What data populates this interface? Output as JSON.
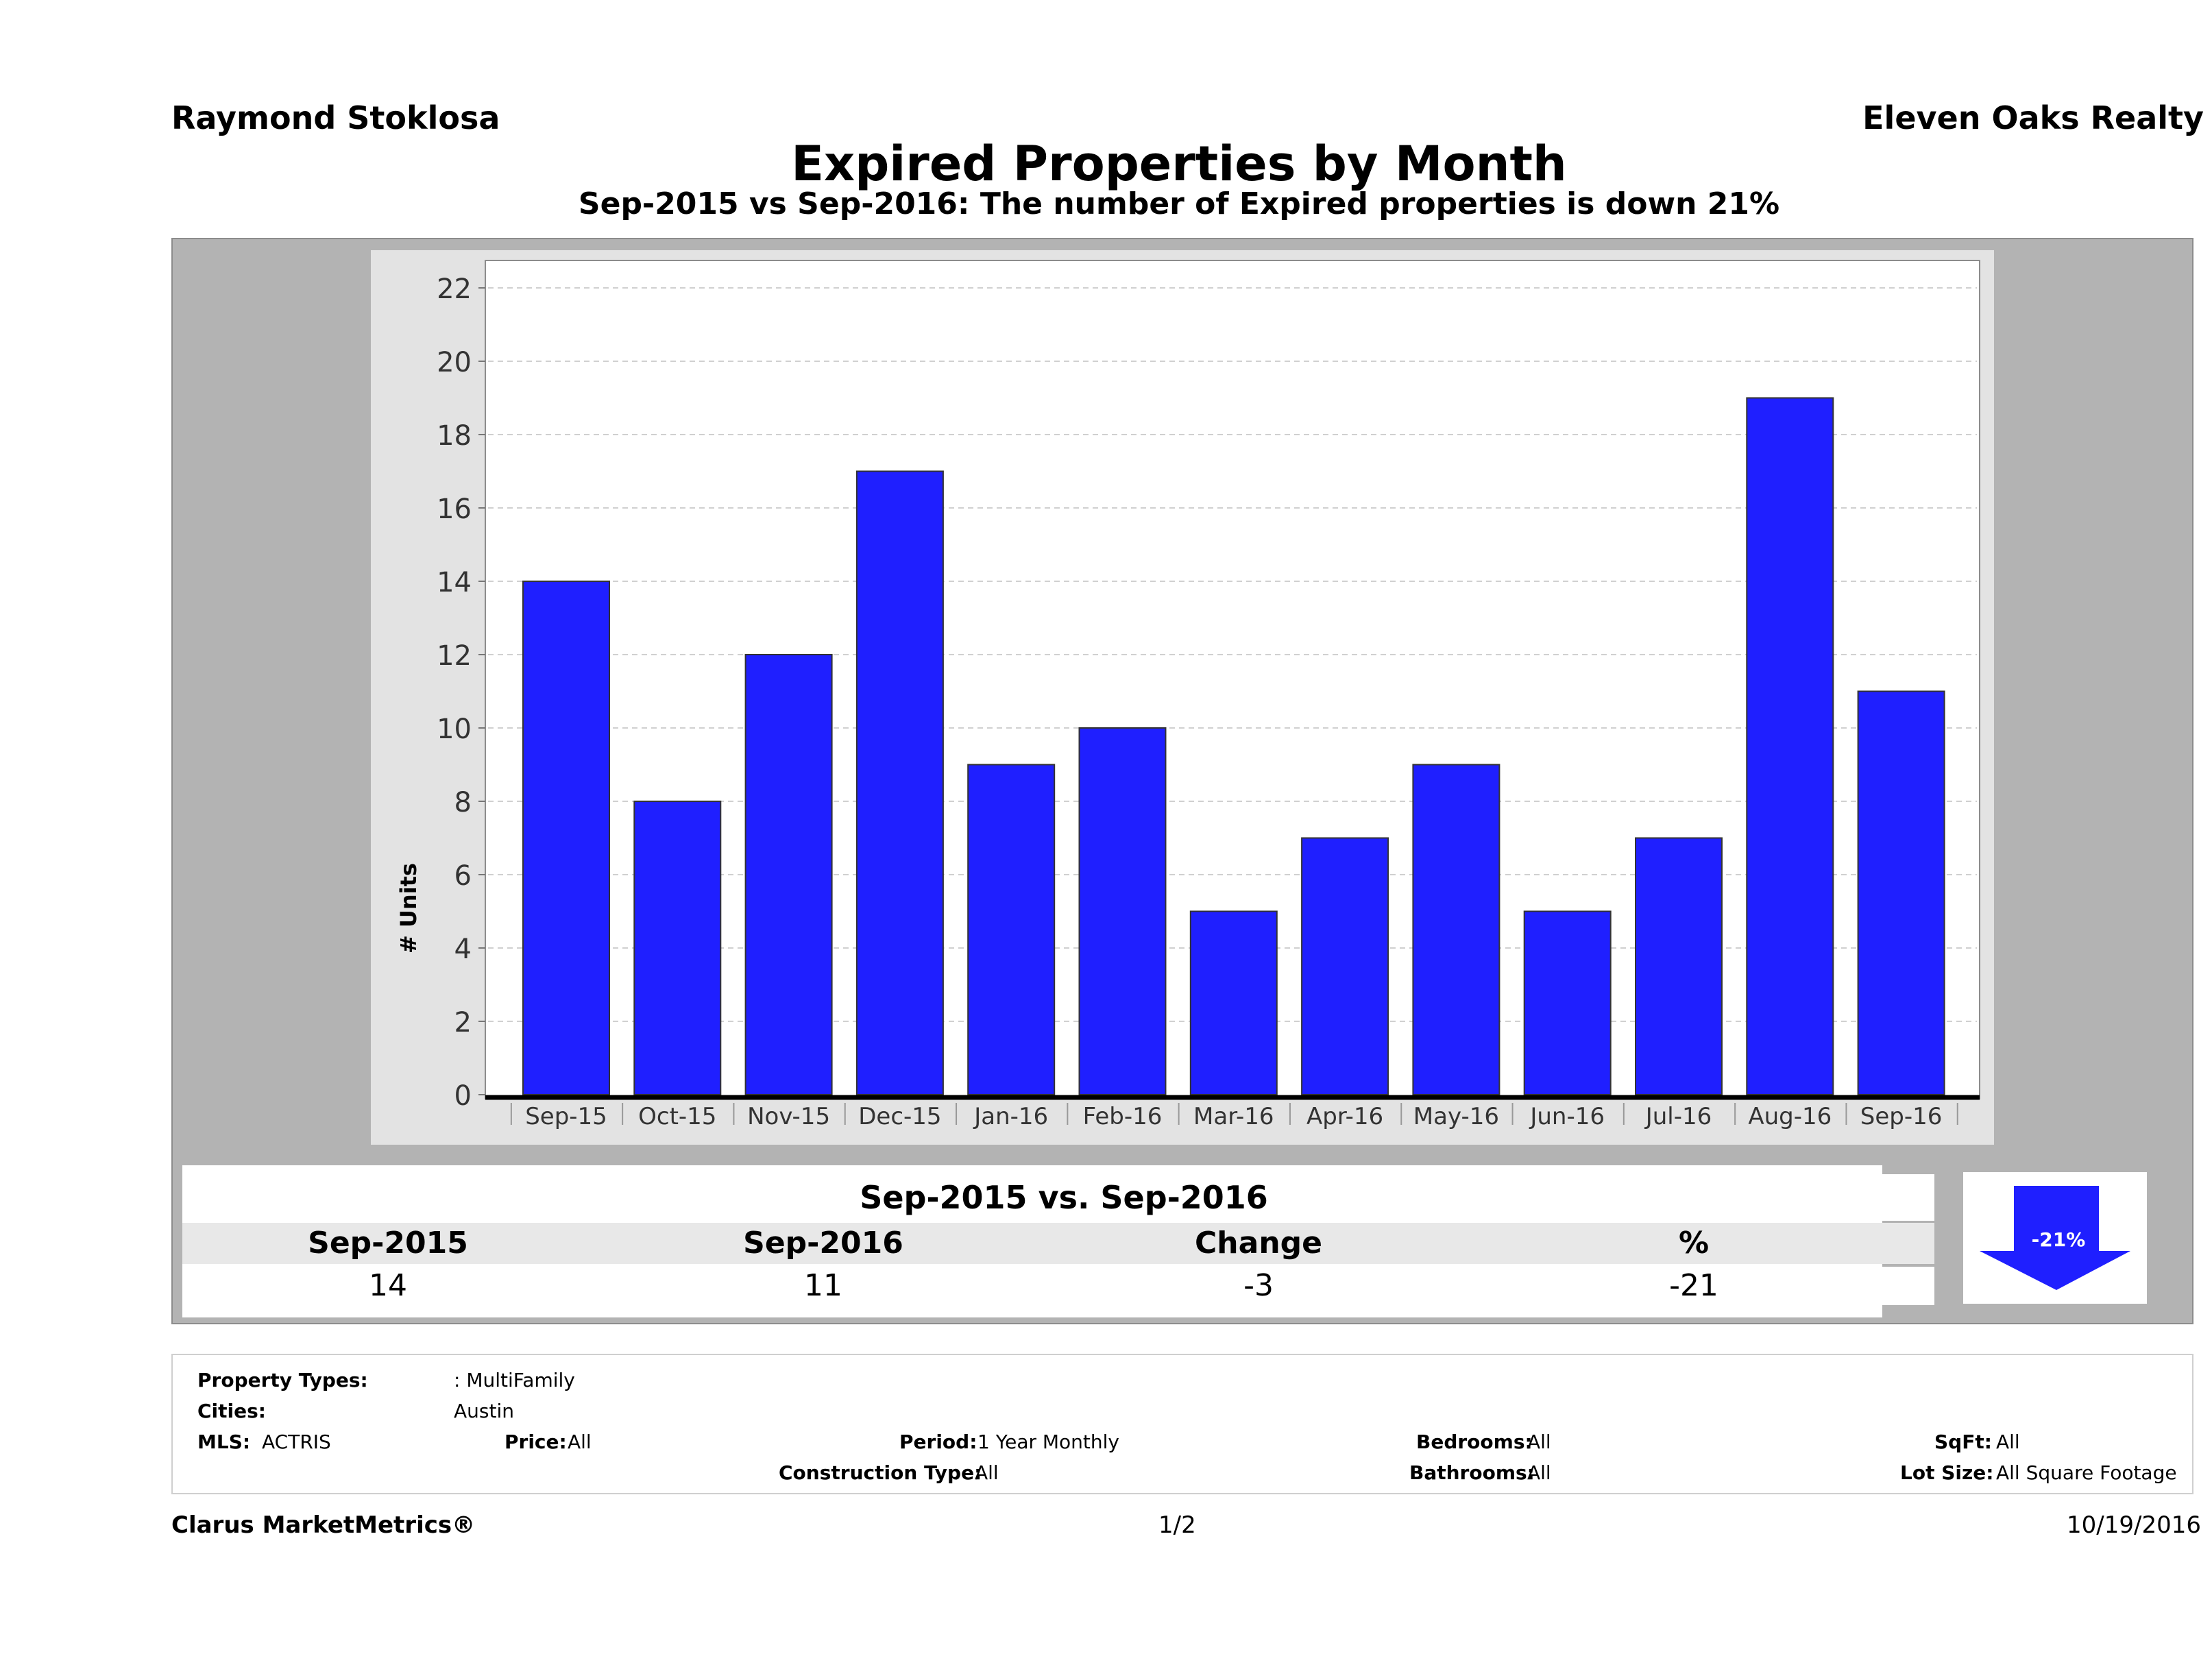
{
  "header": {
    "agent": "Raymond Stoklosa",
    "brokerage": "Eleven Oaks Realty",
    "title": "Expired Properties by Month",
    "subtitle": "Sep-2015 vs Sep-2016: The number of Expired  properties is down 21%"
  },
  "chart_data": {
    "type": "bar",
    "title": "Expired Properties by Month",
    "xlabel": "",
    "ylabel": "# Units",
    "categories": [
      "Sep-15",
      "Oct-15",
      "Nov-15",
      "Dec-15",
      "Jan-16",
      "Feb-16",
      "Mar-16",
      "Apr-16",
      "May-16",
      "Jun-16",
      "Jul-16",
      "Aug-16",
      "Sep-16"
    ],
    "values": [
      14,
      8,
      12,
      17,
      9,
      10,
      5,
      7,
      9,
      5,
      7,
      19,
      11
    ],
    "ylim": [
      0,
      22
    ],
    "yticks": [
      0,
      2,
      4,
      6,
      8,
      10,
      12,
      14,
      16,
      18,
      20,
      22
    ],
    "grid": true,
    "bar_color": "#1f1fff"
  },
  "comparison": {
    "heading": "Sep-2015 vs. Sep-2016",
    "columns": [
      "Sep-2015",
      "Sep-2016",
      "Change",
      "%"
    ],
    "values": [
      "14",
      "11",
      "-3",
      "-21"
    ],
    "badge": "-21%",
    "arrow_color": "#1f1fff"
  },
  "filters": {
    "property_types_label": "Property Types:",
    "property_types_value": ": MultiFamily",
    "cities_label": "Cities:",
    "cities_value": "Austin",
    "mls_label": "MLS:",
    "mls_value": "ACTRIS",
    "price_label": "Price:",
    "price_value": "All",
    "period_label": "Period:",
    "period_value": "1 Year Monthly",
    "construction_label": "Construction Type:",
    "construction_value": "All",
    "bedrooms_label": "Bedrooms:",
    "bedrooms_value": "All",
    "bathrooms_label": "Bathrooms:",
    "bathrooms_value": "All",
    "sqft_label": "SqFt:",
    "sqft_value": "All",
    "lot_label": "Lot Size:",
    "lot_value": "All Square Footage"
  },
  "footer": {
    "brand": "Clarus MarketMetrics®",
    "page": "1/2",
    "date": "10/19/2016"
  }
}
